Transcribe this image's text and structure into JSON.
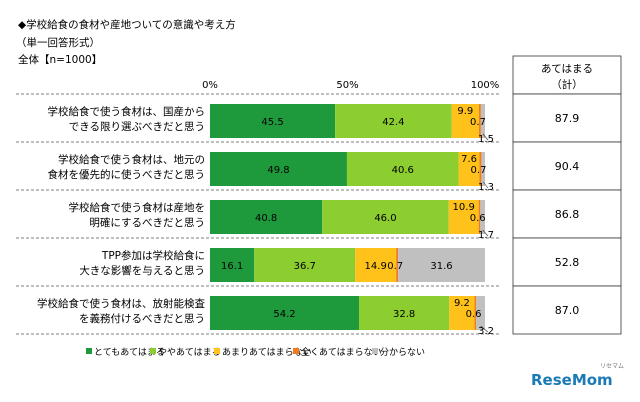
{
  "header": {
    "title": "◆学校給食の食材や産地ついての意識や考え方",
    "note": "（単一回答形式）",
    "base": "全体【n=1000】"
  },
  "chart_data": {
    "type": "bar",
    "orientation": "horizontal",
    "stacked": true,
    "percent_stacked": true,
    "xlim": [
      0,
      100
    ],
    "ticks": [
      "0%",
      "50%",
      "100%"
    ],
    "categories": [
      [
        "学校給食で使う食材は、国産から",
        "できる限り選ぶべきだと思う"
      ],
      [
        "学校給食で使う食材は、地元の",
        "食材を優先的に使うべきだと思う"
      ],
      [
        "学校給食で使う食材は産地を",
        "明確にするべきだと思う"
      ],
      [
        "TPP参加は学校給食に",
        "大きな影響を与えると思う"
      ],
      [
        "学校給食で使う食材は、放射能検査",
        "を義務付けるべきだと思う"
      ]
    ],
    "series": [
      {
        "name": "とてもあてはまる",
        "color": "#1e9a3c",
        "values": [
          45.5,
          49.8,
          40.8,
          16.1,
          54.2
        ]
      },
      {
        "name": "ややあてはまる",
        "color": "#8ccd2f",
        "values": [
          42.4,
          40.6,
          46.0,
          36.7,
          32.8
        ]
      },
      {
        "name": "あまりあてはまらない",
        "color": "#ffc21a",
        "values": [
          9.9,
          7.6,
          10.9,
          14.9,
          9.2
        ]
      },
      {
        "name": "全くあてはまらない",
        "color": "#f07c1e",
        "values": [
          0.7,
          0.7,
          0.6,
          0.7,
          0.6
        ]
      },
      {
        "name": "分からない",
        "color": "#c0c0c0",
        "values": [
          1.5,
          1.3,
          1.7,
          31.6,
          3.2
        ]
      }
    ],
    "summary": {
      "title": [
        "あてはまる",
        "（計）"
      ],
      "values": [
        "87.9",
        "90.4",
        "86.8",
        "52.8",
        "87.0"
      ]
    }
  },
  "logo": {
    "text": "ReseMom",
    "sub": "リセマム"
  }
}
